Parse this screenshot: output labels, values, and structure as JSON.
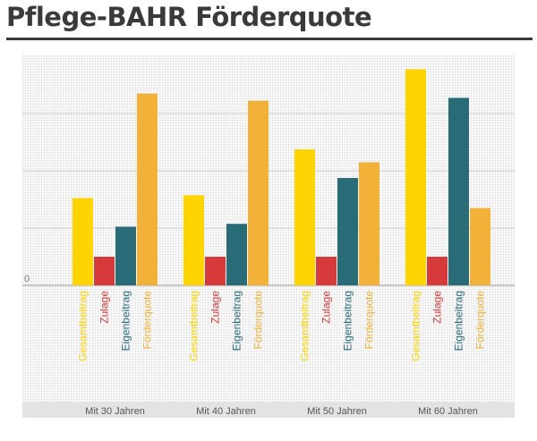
{
  "title": "Pflege-BAHR Förderquote",
  "chart_data": {
    "type": "bar",
    "title": "Pflege-BAHR Förderquote",
    "categories": [
      "Mit   30 Jahren",
      "Mit   40 Jahren",
      "Mit   50 Jahren",
      "Mit   60 Jahren"
    ],
    "series": [
      {
        "name": "Gesamtbeitrag",
        "color": "#ffd400",
        "values": [
          3.05,
          3.15,
          4.75,
          7.55
        ]
      },
      {
        "name": "Zulage",
        "color": "#d63a3a",
        "values": [
          1.0,
          1.0,
          1.0,
          1.0
        ]
      },
      {
        "name": "Eigenbeitrag",
        "color": "#2a6b78",
        "values": [
          2.05,
          2.15,
          3.75,
          6.55
        ]
      },
      {
        "name": "Förderquote",
        "color": "#f2b23a",
        "values": [
          6.7,
          6.45,
          4.3,
          2.7
        ]
      }
    ],
    "ylim": [
      0,
      8
    ],
    "y_ticks_labeled": [
      "0"
    ],
    "grid": true,
    "legend": "vertical labels under each bar"
  }
}
